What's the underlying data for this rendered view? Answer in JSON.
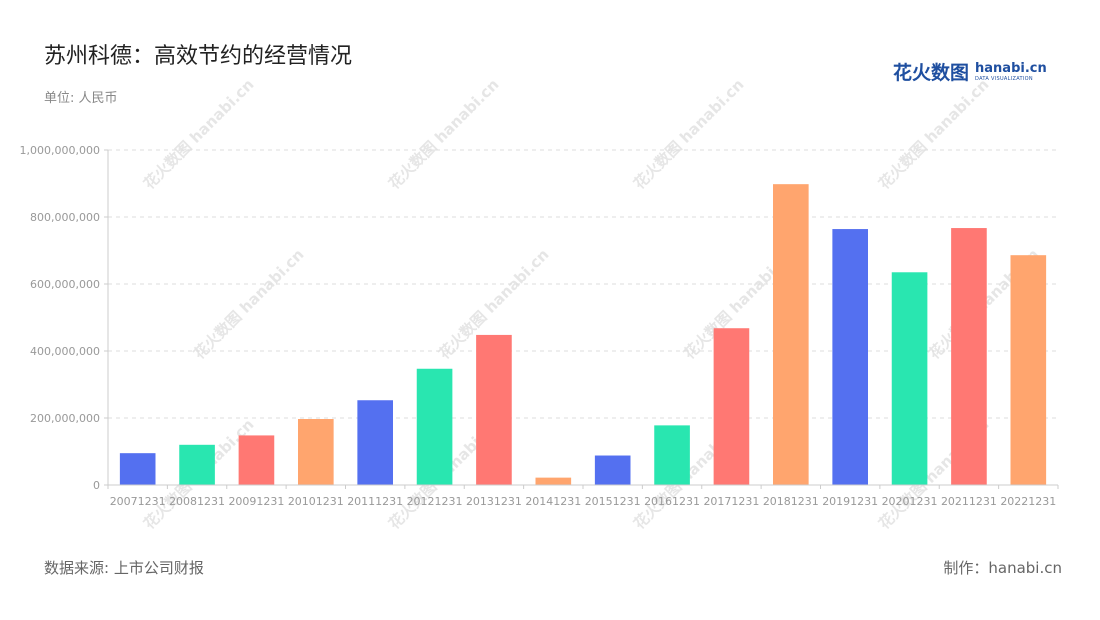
{
  "title": "苏州科德：高效节约的经营情况",
  "unit": "单位: 人民币",
  "source": "数据来源: 上市公司财报",
  "maker": "制作：hanabi.cn",
  "logo": {
    "cn": "花火数图",
    "en": "hanabi.cn",
    "sub": "DATA VISUALIZATION"
  },
  "colors": [
    "#5470f0",
    "#29e6b0",
    "#ff7873",
    "#ffa56e"
  ],
  "chart_data": {
    "type": "bar",
    "categories": [
      "20071231",
      "20081231",
      "20091231",
      "20101231",
      "20111231",
      "20121231",
      "20131231",
      "20141231",
      "20151231",
      "20161231",
      "20171231",
      "20181231",
      "20191231",
      "20201231",
      "20211231",
      "20221231"
    ],
    "values": [
      95000000,
      120000000,
      148000000,
      197000000,
      253000000,
      347000000,
      448000000,
      22000000,
      88000000,
      178000000,
      468000000,
      898000000,
      764000000,
      635000000,
      767000000,
      686000000
    ],
    "ylim": [
      0,
      1000000000
    ],
    "yticks": [
      0,
      200000000,
      400000000,
      600000000,
      800000000,
      1000000000
    ],
    "ytick_labels": [
      "0",
      "200,000,000",
      "400,000,000",
      "600,000,000",
      "800,000,000",
      "1,000,000,000"
    ],
    "grid": true,
    "legend": "none"
  }
}
